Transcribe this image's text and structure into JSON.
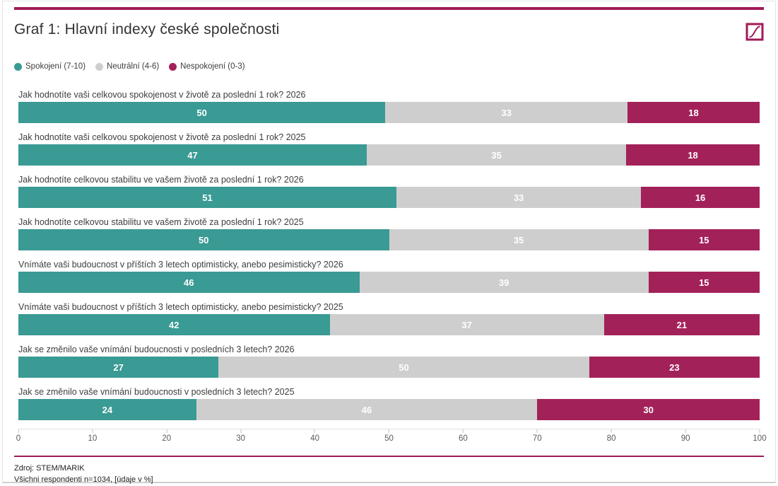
{
  "page": {
    "title": "Graf 1: Hlavní indexy české společnosti",
    "accent_color": "#a01a58"
  },
  "legend": [
    {
      "label": "Spokojení (7-10)",
      "color": "#3a9a94"
    },
    {
      "label": "Neutrální (4-6)",
      "color": "#cecece"
    },
    {
      "label": "Nespokojení (0-3)",
      "color": "#a32159"
    }
  ],
  "chart_data": {
    "type": "bar",
    "orientation": "horizontal",
    "stacked": true,
    "title": "Graf 1: Hlavní indexy české společnosti",
    "xlim": [
      0,
      100
    ],
    "x_ticks": [
      0,
      10,
      20,
      30,
      40,
      50,
      60,
      70,
      80,
      90,
      100
    ],
    "value_labels": true,
    "units": "%",
    "categories": [
      "Jak hodnotíte vaši celkovou spokojenost v životě za poslední 1 rok? 2026",
      "Jak hodnotíte vaši celkovou spokojenost v životě za poslední 1 rok? 2025",
      "Jak hodnotíte celkovou stabilitu ve vašem životě za poslední 1 rok? 2026",
      "Jak hodnotíte celkovou stabilitu ve vašem životě za poslední 1 rok? 2025",
      "Vnímáte vaši budoucnost v příštích 3 letech optimisticky, anebo pesimisticky? 2026",
      "Vnímáte vaši budoucnost v příštích 3 letech optimisticky, anebo pesimisticky? 2025",
      "Jak se změnilo vaše vnímání budoucnosti v posledních 3 letech? 2026",
      "Jak se změnilo vaše vnímání budoucnosti v posledních 3 letech? 2025"
    ],
    "series": [
      {
        "name": "Spokojení (7-10)",
        "color": "#3a9a94",
        "values": [
          50,
          47,
          51,
          50,
          46,
          42,
          27,
          24
        ]
      },
      {
        "name": "Neutrální (4-6)",
        "color": "#cecece",
        "values": [
          33,
          35,
          33,
          35,
          39,
          37,
          50,
          46
        ]
      },
      {
        "name": "Nespokojení (0-3)",
        "color": "#a32159",
        "values": [
          18,
          18,
          16,
          15,
          15,
          21,
          23,
          30
        ]
      }
    ],
    "legend_position": "top",
    "grid": false
  },
  "footer": {
    "source": "Zdroj: STEM/MARIK",
    "note": "Všichni respondenti n=1034, [údaje v %]"
  }
}
